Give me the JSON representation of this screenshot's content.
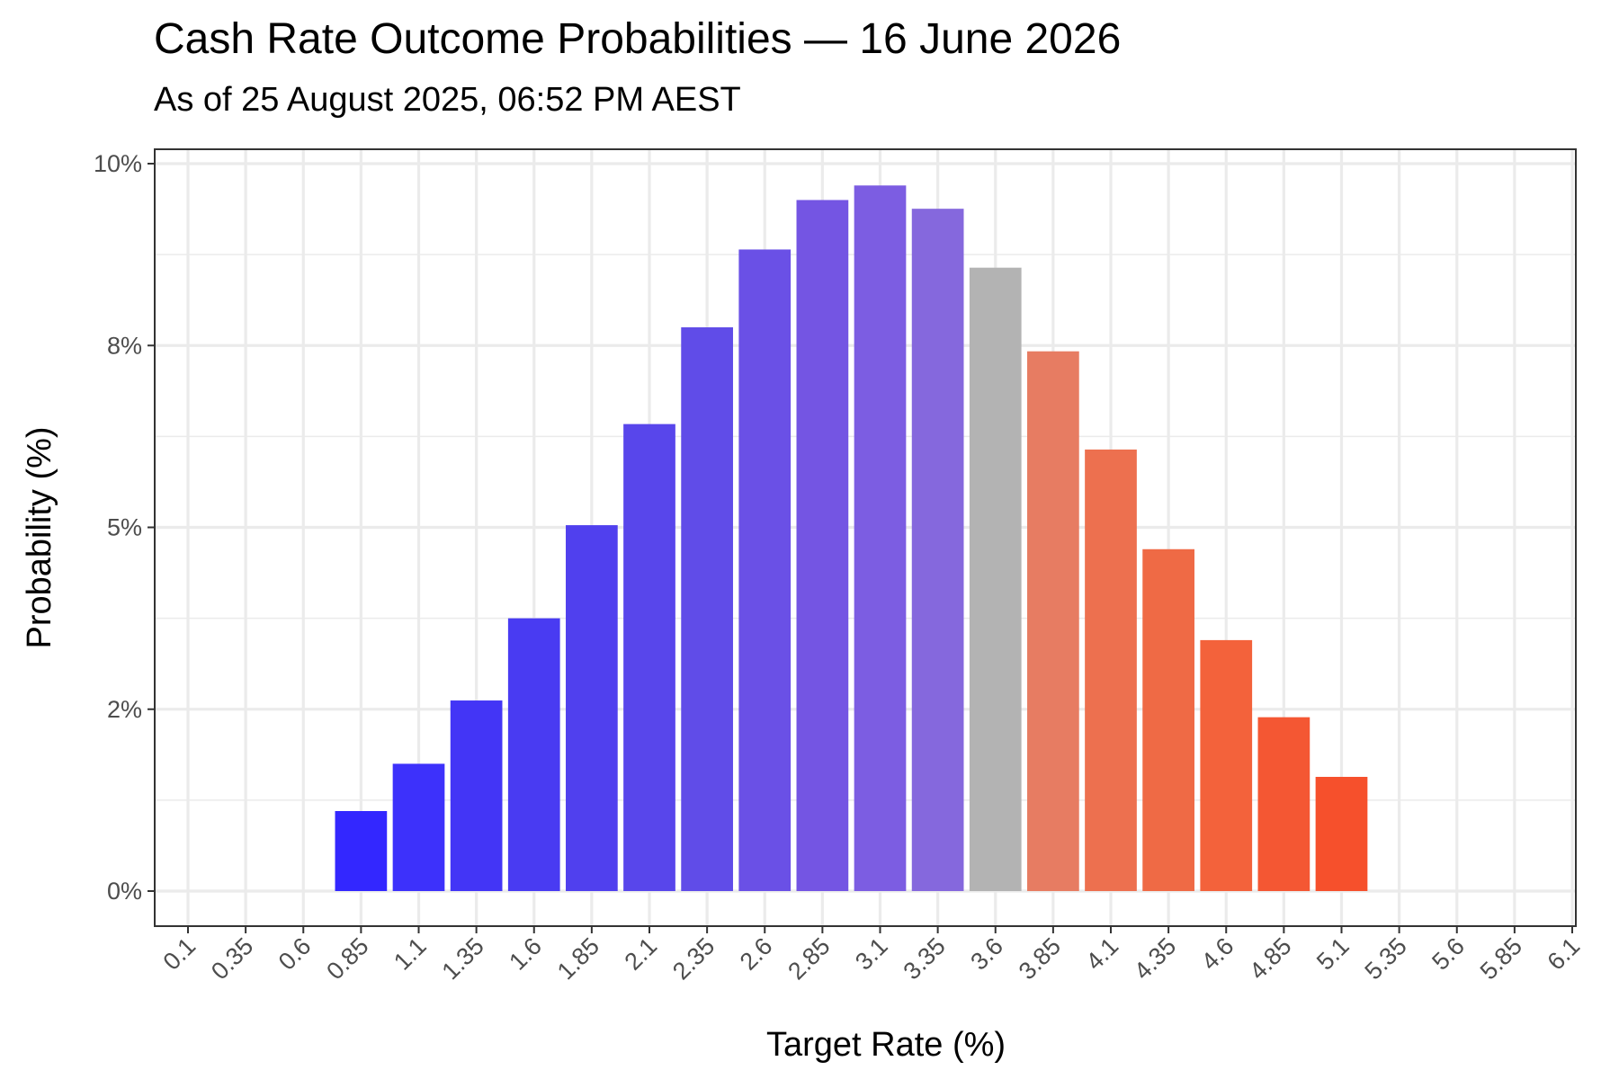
{
  "title": "Cash Rate Outcome Probabilities — 16 June 2026",
  "subtitle": "As of 25 August 2025, 06:52 PM AEST",
  "chart_data": {
    "type": "bar",
    "xlabel": "Target Rate (%)",
    "ylabel": "Probability (%)",
    "categories": [
      "0.1",
      "0.35",
      "0.6",
      "0.85",
      "1.1",
      "1.35",
      "1.6",
      "1.85",
      "2.1",
      "2.35",
      "2.6",
      "2.85",
      "3.1",
      "3.35",
      "3.6",
      "3.85",
      "4.1",
      "4.35",
      "4.6",
      "4.85",
      "5.1",
      "5.35",
      "5.6",
      "5.85",
      "6.1"
    ],
    "values": [
      0,
      0,
      0,
      1.1,
      1.75,
      2.62,
      3.75,
      5.03,
      6.42,
      7.75,
      8.82,
      9.5,
      9.7,
      9.38,
      8.57,
      7.42,
      6.07,
      4.7,
      3.45,
      2.39,
      1.57,
      0,
      0,
      0,
      0
    ],
    "colors": [
      "#3a2cff",
      "#3a2cff",
      "#3a2cff",
      "#3327ff",
      "#3d31fb",
      "#4335f6",
      "#493bf2",
      "#5040ee",
      "#5846eb",
      "#604ce8",
      "#6a50e6",
      "#7455e3",
      "#7c5de2",
      "#8568dd",
      "#b3b3b3",
      "#e77c62",
      "#ed704f",
      "#ef6a45",
      "#f3623b",
      "#f45733",
      "#f6502c",
      "#f6502c",
      "#f6502c",
      "#f6502c",
      "#f6502c"
    ],
    "ylim": [
      0,
      10
    ],
    "yticks": [
      0,
      2.5,
      5,
      7.5,
      10
    ],
    "ytick_labels": [
      "0%",
      "2%",
      "5%",
      "8%",
      "10%"
    ],
    "grid": true,
    "legend": "none"
  }
}
